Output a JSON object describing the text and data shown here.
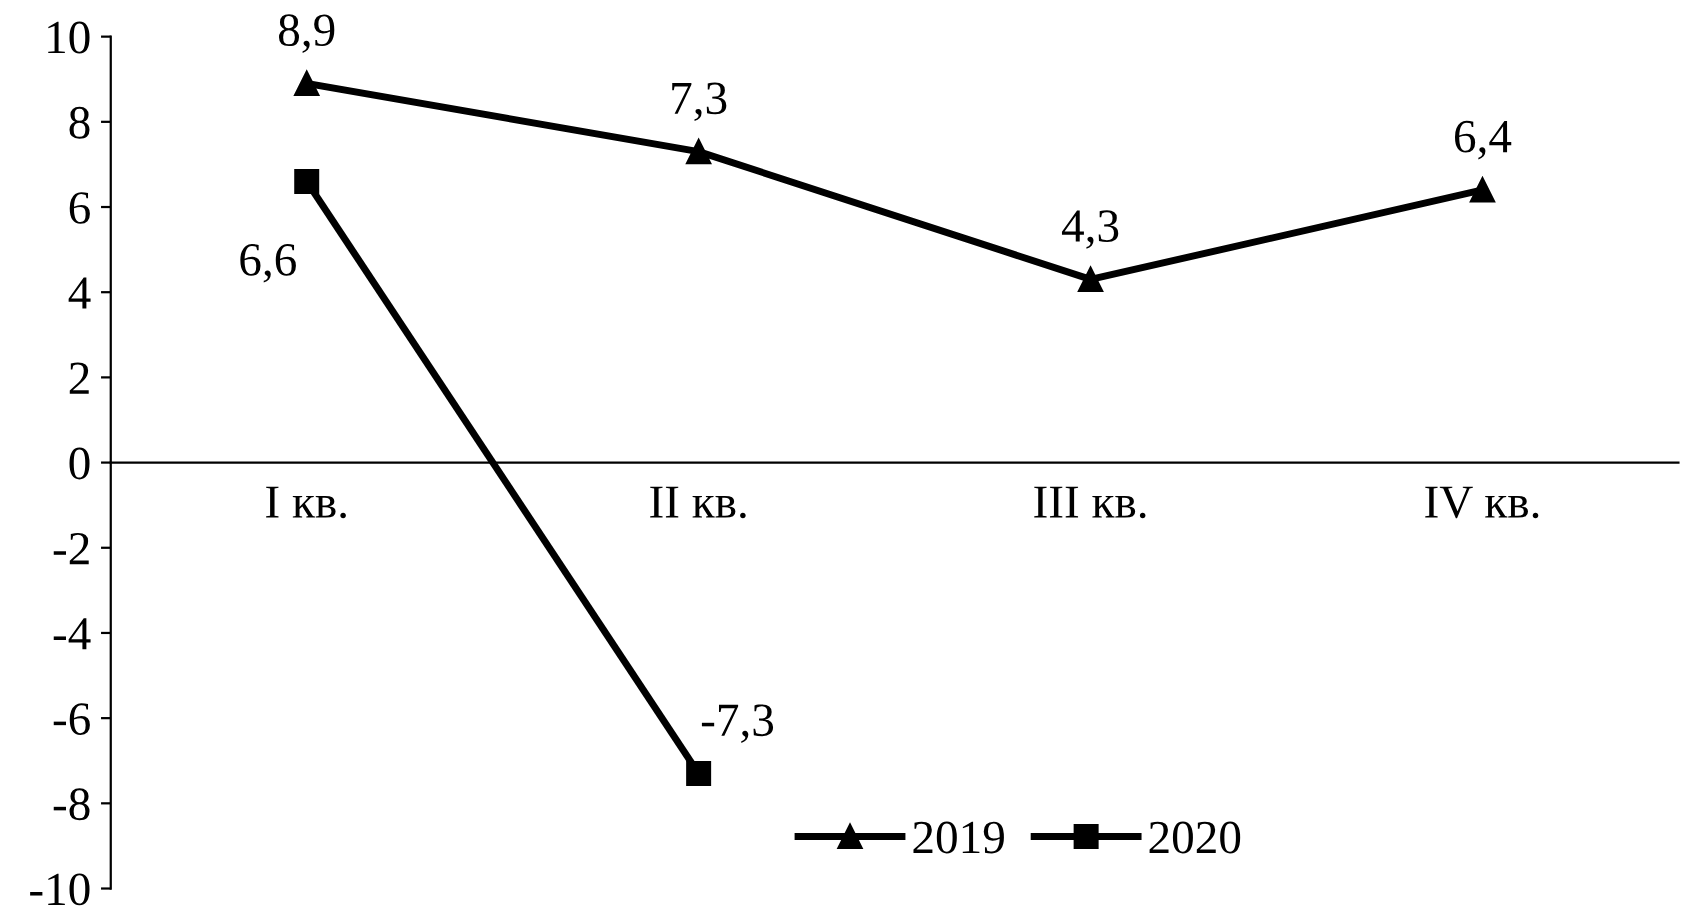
{
  "chart_data": {
    "type": "line",
    "categories": [
      "I кв.",
      "II кв.",
      "III кв.",
      "IV кв."
    ],
    "series": [
      {
        "name": "2019",
        "color": "#000000",
        "marker": "triangle",
        "values": [
          8.9,
          7.3,
          4.3,
          6.4
        ],
        "value_labels": [
          "8,9",
          "7,3",
          "4,3",
          "6,4"
        ]
      },
      {
        "name": "2020",
        "color": "#000000",
        "marker": "square",
        "values": [
          6.6,
          -7.3,
          null,
          null
        ],
        "value_labels": [
          "6,6",
          "-7,3",
          null,
          null
        ]
      }
    ],
    "ylim": [
      -10,
      10
    ],
    "yticks": [
      -10,
      -8,
      -6,
      -4,
      -2,
      0,
      2,
      4,
      6,
      8,
      10
    ],
    "grid": false,
    "legend": "bottom",
    "line_style": "solid"
  }
}
